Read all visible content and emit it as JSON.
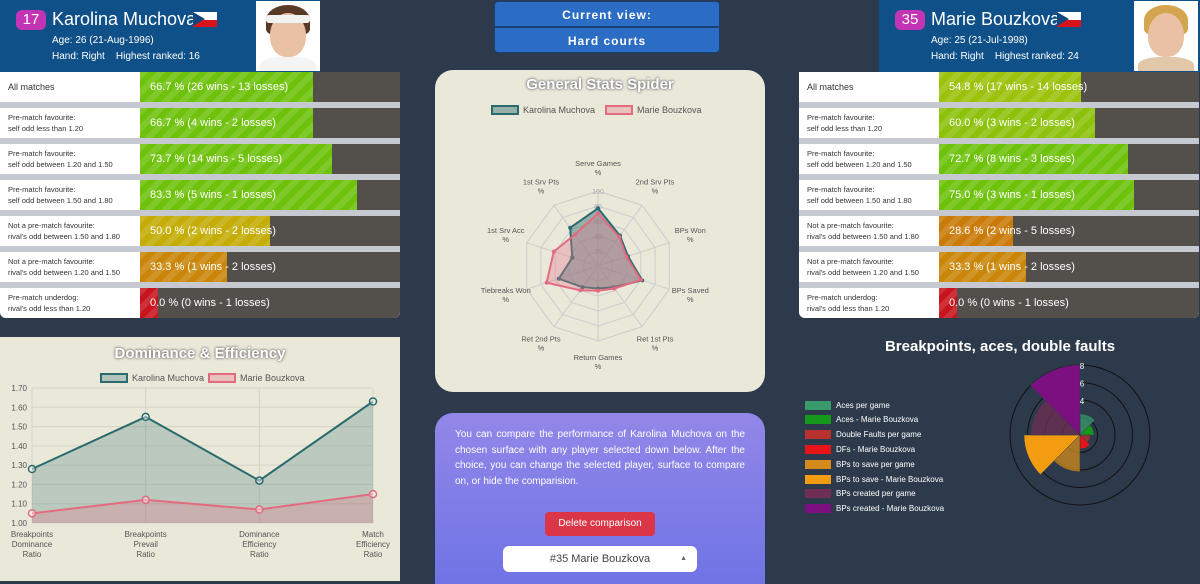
{
  "view": {
    "title": "Current view:",
    "surface": "Hard courts"
  },
  "player1": {
    "rank": "17",
    "name": "Karolina Muchova",
    "age": "Age: 26 (21-Aug-1996)",
    "details": "Hand: Right    Highest ranked: 16",
    "stats": [
      {
        "l1": "All matches",
        "l2": "",
        "text": "66.7 % (26 wins - 13 losses)",
        "pct": 0.667,
        "color": "#6fc20c"
      },
      {
        "l1": "Pre-match favourite:",
        "l2": "self odd less than 1.20",
        "text": "66.7 % (4 wins - 2 losses)",
        "pct": 0.667,
        "color": "#6fc20c"
      },
      {
        "l1": "Pre-match favourite:",
        "l2": "self odd between 1.20 and 1.50",
        "text": "73.7 % (14 wins - 5 losses)",
        "pct": 0.737,
        "color": "#6fc20c"
      },
      {
        "l1": "Pre-match favourite:",
        "l2": "self odd between 1.50 and 1.80",
        "text": "83.3 % (5 wins - 1 losses)",
        "pct": 0.833,
        "color": "#6fc20c"
      },
      {
        "l1": "Not a pre-match favourite:",
        "l2": "rival's odd between 1.50 and 1.80",
        "text": "50.0 % (2 wins - 2 losses)",
        "pct": 0.5,
        "color": "#c4ad07"
      },
      {
        "l1": "Not a pre-match favourite:",
        "l2": "rival's odd between 1.20 and 1.50",
        "text": "33.3 % (1 wins - 2 losses)",
        "pct": 0.333,
        "color": "#c98608"
      },
      {
        "l1": "Pre-match underdog:",
        "l2": "rival's odd less than 1.20",
        "text": "0.0 % (0 wins - 1 losses)",
        "pct": 0.0,
        "color": "#c8141e"
      }
    ]
  },
  "player2": {
    "rank": "35",
    "name": "Marie Bouzkova",
    "age": "Age: 25 (21-Jul-1998)",
    "details": "Hand: Right    Highest ranked: 24",
    "stats": [
      {
        "l1": "All matches",
        "l2": "",
        "text": "54.8 % (17 wins - 14 losses)",
        "pct": 0.548,
        "color": "#9cc20c"
      },
      {
        "l1": "Pre-match favourite:",
        "l2": "self odd less than 1.20",
        "text": "60.0 % (3 wins - 2 losses)",
        "pct": 0.6,
        "color": "#8dc20c"
      },
      {
        "l1": "Pre-match favourite:",
        "l2": "self odd between 1.20 and 1.50",
        "text": "72.7 % (8 wins - 3 losses)",
        "pct": 0.727,
        "color": "#6fc20c"
      },
      {
        "l1": "Pre-match favourite:",
        "l2": "self odd between 1.50 and 1.80",
        "text": "75.0 % (3 wins - 1 losses)",
        "pct": 0.75,
        "color": "#6fc20c"
      },
      {
        "l1": "Not a pre-match favourite:",
        "l2": "rival's odd between 1.50 and 1.80",
        "text": "28.6 % (2 wins - 5 losses)",
        "pct": 0.286,
        "color": "#c97a08"
      },
      {
        "l1": "Not a pre-match favourite:",
        "l2": "rival's odd between 1.20 and 1.50",
        "text": "33.3 % (1 wins - 2 losses)",
        "pct": 0.333,
        "color": "#c98608"
      },
      {
        "l1": "Pre-match underdog:",
        "l2": "rival's odd less than 1.20",
        "text": "0.0 % (0 wins - 1 losses)",
        "pct": 0.0,
        "color": "#c8141e"
      }
    ]
  },
  "spider": {
    "title": "General Stats Spider",
    "legend": [
      "Karolina Muchova",
      "Marie Bouzkova"
    ],
    "colors": [
      "#2a6b6e",
      "#e36b80"
    ],
    "fills": [
      "rgba(80,130,130,0.55)",
      "rgba(230,120,140,0.35)"
    ]
  },
  "dominance": {
    "title": "Dominance & Efficiency",
    "legend": [
      "Karolina Muchova",
      "Marie Bouzkova"
    ]
  },
  "compare": {
    "text": "You can compare the performance of Karolina Muchova on the chosen surface with any player selected down below. After the choice, you can change the selected player, surface to compare on, or hide the comparision.",
    "delete_label": "Delete comparison",
    "selected": "#35 Marie Bouzkova"
  },
  "breakpoints": {
    "title": "Breakpoints, aces, double faults"
  },
  "chart_data": [
    {
      "type": "radar",
      "title": "General Stats Spider",
      "categories": [
        "Serve Games %",
        "2nd Srv Pts %",
        "BPs Won %",
        "BPs Saved %",
        "Ret 1st Pts %",
        "Return Games %",
        "Ret 2nd Pts %",
        "Tiebreaks Won %",
        "1st Srv Acc %",
        "1st Srv Pts %"
      ],
      "ticks": [
        "20",
        "40",
        "60",
        "80",
        "100"
      ],
      "ylim": [
        0,
        100
      ],
      "series": [
        {
          "name": "Karolina Muchova",
          "values": [
            77,
            50,
            42,
            62,
            35,
            30,
            35,
            55,
            36,
            63
          ]
        },
        {
          "name": "Marie Bouzkova",
          "values": [
            70,
            48,
            40,
            60,
            37,
            33,
            40,
            72,
            62,
            52
          ]
        }
      ]
    },
    {
      "type": "line",
      "title": "Dominance & Efficiency",
      "categories": [
        [
          "Breakpoints",
          "Dominance",
          "Ratio"
        ],
        [
          "Breakpoints",
          "Prevail",
          "Ratio"
        ],
        [
          "Dominance",
          "Efficiency",
          "Ratio"
        ],
        [
          "Match",
          "Efficiency",
          "Ratio"
        ]
      ],
      "ticks": [
        "1.70",
        "1.60",
        "1.50",
        "1.40",
        "1.30",
        "1.20",
        "1.10",
        "1.00"
      ],
      "ylim": [
        1.0,
        1.7
      ],
      "series": [
        {
          "name": "Karolina Muchova",
          "values": [
            1.28,
            1.55,
            1.22,
            1.63
          ],
          "color": "#2a6b6e"
        },
        {
          "name": "Marie Bouzkova",
          "values": [
            1.05,
            1.12,
            1.07,
            1.15
          ],
          "color": "#e36b80"
        }
      ]
    },
    {
      "type": "polar-area",
      "title": "Breakpoints, aces, double faults",
      "ticks": [
        "4",
        "6",
        "8"
      ],
      "ylim": [
        0,
        8
      ],
      "categories": [
        "Aces per game",
        "Aces - Marie Bouzkova",
        "Double Faults per game",
        "DFs - Marie Bouzkova",
        "BPs to save per game",
        "BPs to save - Marie Bouzkova",
        "BPs created per game",
        "BPs created - Marie Bouzkova"
      ],
      "values": [
        2.4,
        1.6,
        1.2,
        1.6,
        4.2,
        6.4,
        5.6,
        8.0
      ],
      "colors": [
        "#3a9a6b",
        "#16991a",
        "#b8312f",
        "#e7141a",
        "#d48b1c",
        "#f39c12",
        "#6f2f55",
        "#7c1080"
      ]
    }
  ]
}
